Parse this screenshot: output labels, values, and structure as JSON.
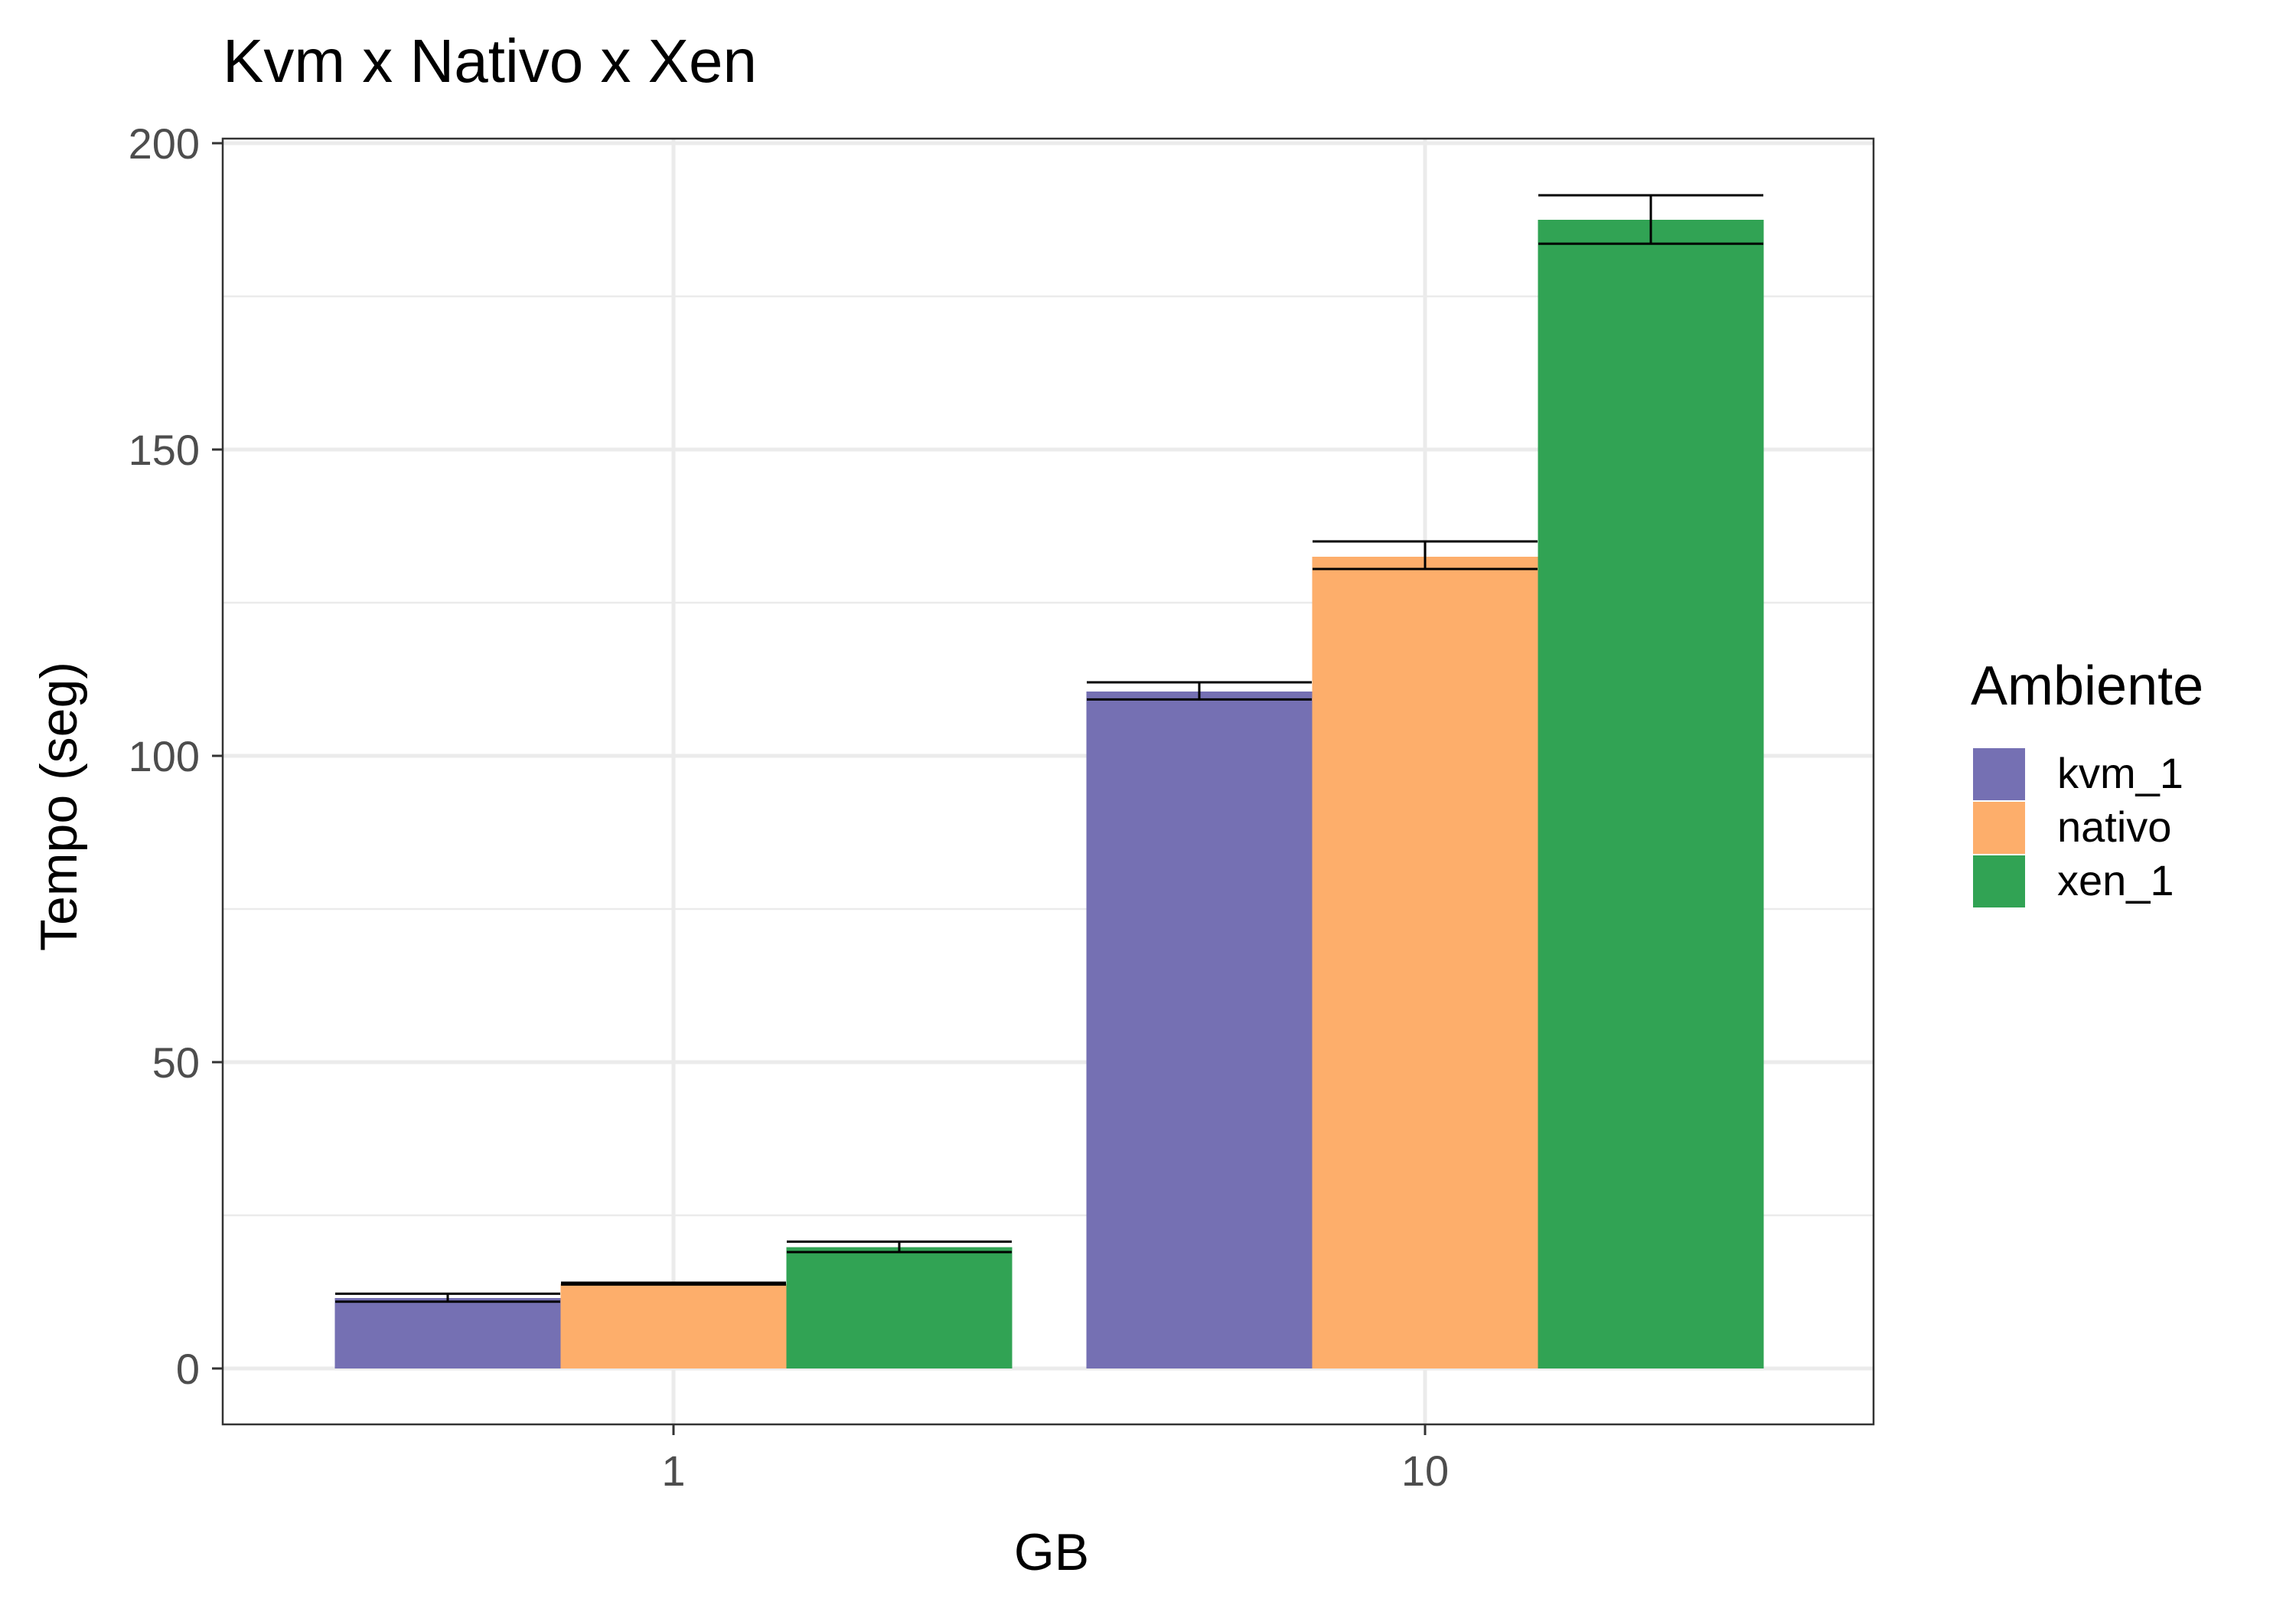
{
  "chart_data": {
    "type": "bar",
    "title": "Kvm x Nativo x Xen",
    "xlabel": "GB",
    "ylabel": "Tempo (seg)",
    "categories": [
      "1",
      "10"
    ],
    "ylim": [
      -9.3,
      200
    ],
    "yticks": [
      "0",
      "50",
      "100",
      "150",
      "200"
    ],
    "ytick_values": [
      0,
      50,
      100,
      150,
      200
    ],
    "minor_gridlines": [
      25,
      75,
      125,
      175
    ],
    "grid": true,
    "legend": {
      "title": "Ambiente",
      "position": "right"
    },
    "series": [
      {
        "name": "kvm_1",
        "color": "#7570b3",
        "values": [
          11.5,
          110.5
        ],
        "error_low": [
          10.9,
          109.2
        ],
        "error_high": [
          12.2,
          112.0
        ]
      },
      {
        "name": "nativo",
        "color": "#fdae6b",
        "values": [
          13.8,
          132.5
        ],
        "error_low": [
          13.7,
          130.5
        ],
        "error_high": [
          14.0,
          135.0
        ]
      },
      {
        "name": "xen_1",
        "color": "#31a354",
        "values": [
          19.8,
          187.5
        ],
        "error_low": [
          19.0,
          183.6
        ],
        "error_high": [
          20.7,
          191.5
        ]
      }
    ]
  }
}
